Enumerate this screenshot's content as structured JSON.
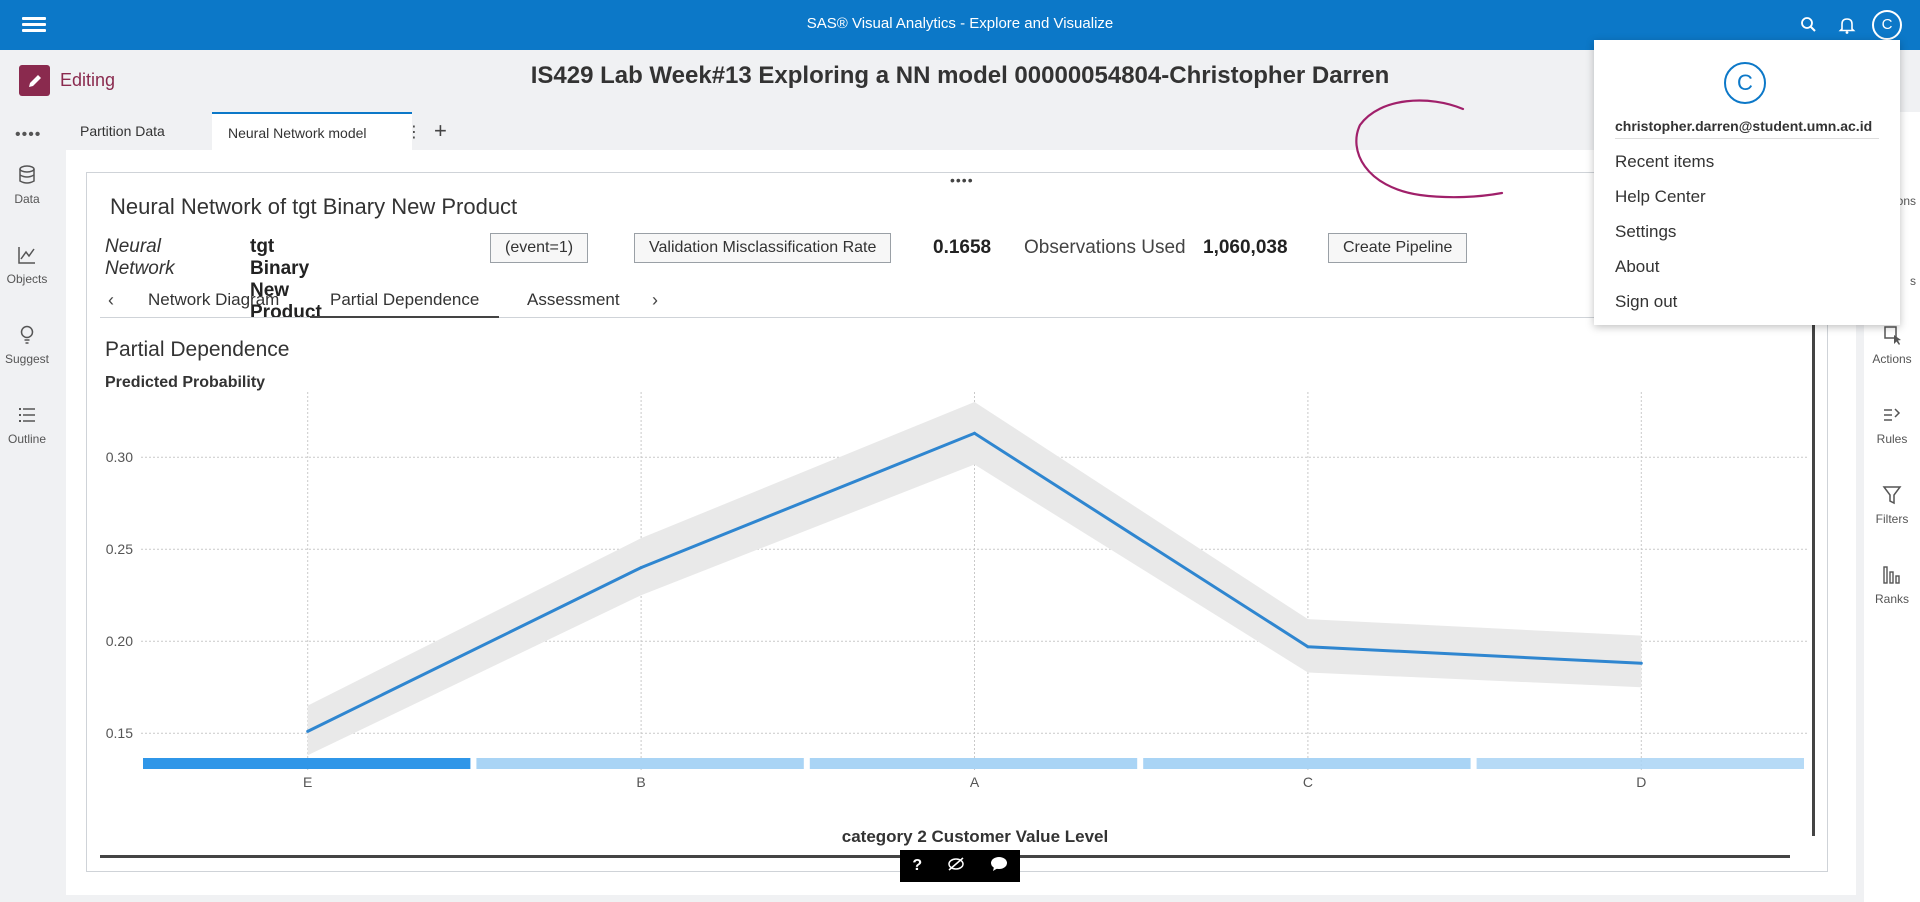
{
  "header": {
    "app_title": "SAS® Visual Analytics - Explore and Visualize",
    "avatar_letter": "C"
  },
  "editing": {
    "label": "Editing"
  },
  "report": {
    "title": "IS429 Lab Week#13 Exploring a NN model 00000054804-Christopher Darren"
  },
  "left_nav": {
    "items": [
      {
        "label": "Data",
        "icon": "database-icon"
      },
      {
        "label": "Objects",
        "icon": "line-chart-icon"
      },
      {
        "label": "Suggest",
        "icon": "lightbulb-icon"
      },
      {
        "label": "Outline",
        "icon": "list-icon"
      }
    ]
  },
  "right_nav": {
    "partial_labels": [
      "ions",
      "s"
    ],
    "items": [
      {
        "label": "Actions",
        "icon": "actions-icon"
      },
      {
        "label": "Rules",
        "icon": "rules-icon"
      },
      {
        "label": "Filters",
        "icon": "filter-icon"
      },
      {
        "label": "Ranks",
        "icon": "ranks-icon"
      }
    ]
  },
  "tabs": [
    {
      "label": "Partition Data"
    },
    {
      "label": "Neural Network model"
    }
  ],
  "object": {
    "title": "Neural Network of tgt Binary New Product",
    "model_type": "Neural Network",
    "target": "tgt Binary New Product",
    "event_button": "(event=1)",
    "metric_button": "Validation Misclassification Rate",
    "metric_value": "0.1658",
    "obs_label": "Observations Used",
    "obs_value": "1,060,038",
    "pipeline_button": "Create Pipeline"
  },
  "subtabs": [
    {
      "label": "Network Diagram"
    },
    {
      "label": "Partial Dependence"
    },
    {
      "label": "Assessment"
    }
  ],
  "chart": {
    "title": "Partial Dependence",
    "ylabel": "Predicted Probability",
    "xlabel": "category 2 Customer Value Level"
  },
  "chart_data": {
    "type": "line",
    "title": "Partial Dependence",
    "xlabel": "category 2 Customer Value Level",
    "ylabel": "Predicted Probability",
    "categories": [
      "E",
      "B",
      "A",
      "C",
      "D"
    ],
    "series": [
      {
        "values": [
          0.151,
          0.24,
          0.313,
          0.197,
          0.188
        ]
      }
    ],
    "band_lower": [
      0.138,
      0.225,
      0.296,
      0.183,
      0.175
    ],
    "band_upper": [
      0.165,
      0.256,
      0.33,
      0.212,
      0.203
    ],
    "ylim": [
      0.13,
      0.33
    ],
    "yticks": [
      0.15,
      0.2,
      0.25,
      0.3
    ],
    "ytick_labels": [
      "0.15",
      "0.20",
      "0.25",
      "0.30"
    ],
    "frequency_bar_shades": [
      1.0,
      0.45,
      0.45,
      0.45,
      0.3
    ],
    "colors": {
      "line": "#2f86d0",
      "band": "#e9e9e9",
      "freq_dark": "#2f96e8",
      "freq_light": "#a9d4f5"
    },
    "grid": true
  },
  "bottom_toolbar": {
    "help": "?"
  },
  "user_menu": {
    "avatar_letter": "C",
    "email": "christopher.darren@student.umn.ac.id",
    "items": [
      "Recent items",
      "Help Center",
      "Settings",
      "About",
      "Sign out"
    ]
  }
}
